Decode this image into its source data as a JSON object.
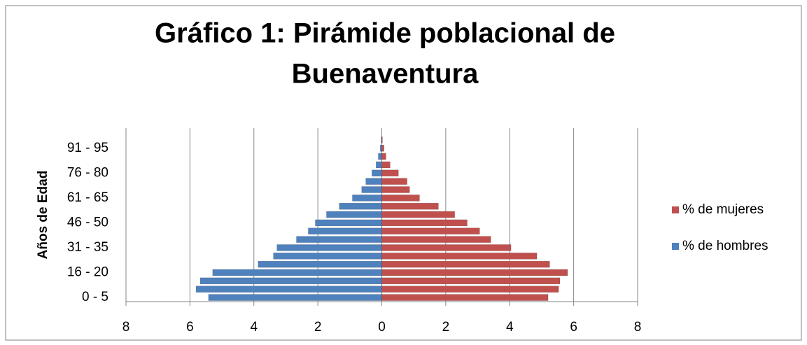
{
  "chart_data": {
    "type": "pyramid",
    "title": [
      "Gráfico 1: Pirámide poblacional de",
      "Buenaventura"
    ],
    "y_label": "Años de Edad",
    "categories": [
      "0 - 5",
      null,
      null,
      "16 - 20",
      null,
      null,
      "31 - 35",
      null,
      null,
      "46 - 50",
      null,
      null,
      "61 - 65",
      null,
      null,
      "76 - 80",
      null,
      null,
      "91 - 95",
      null
    ],
    "series": [
      {
        "name": "% de mujeres",
        "color": "#c0504d",
        "values": [
          5.2,
          5.53,
          5.57,
          5.81,
          5.25,
          4.85,
          4.04,
          3.41,
          3.06,
          2.67,
          2.28,
          1.77,
          1.18,
          0.87,
          0.79,
          0.52,
          0.26,
          0.13,
          0.07,
          0.02
        ]
      },
      {
        "name": "% de hombres",
        "color": "#4f81bd",
        "values": [
          -5.42,
          -5.81,
          -5.68,
          -5.29,
          -3.87,
          -3.39,
          -3.28,
          -2.67,
          -2.3,
          -2.08,
          -1.73,
          -1.33,
          -0.92,
          -0.63,
          -0.5,
          -0.31,
          -0.18,
          -0.11,
          -0.05,
          -0.02
        ]
      }
    ],
    "xlim": [
      -8,
      8
    ],
    "xticks": [
      {
        "value": -8,
        "label": "8"
      },
      {
        "value": -6,
        "label": "6"
      },
      {
        "value": -4,
        "label": "4"
      },
      {
        "value": -2,
        "label": "2"
      },
      0,
      2,
      4,
      6,
      8
    ],
    "grid": true,
    "legend": "right"
  }
}
